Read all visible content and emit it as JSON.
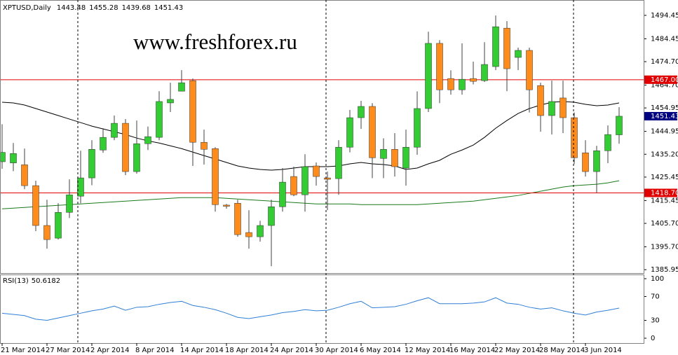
{
  "chart_data": [
    {
      "type": "candlestick",
      "title": "XPTUSD,Daily",
      "watermark": "www.freshforex.ru",
      "watermark_color": "#3aaa3a",
      "categories": [
        "21 Mar 2014",
        null,
        null,
        null,
        "27 Mar 2014",
        null,
        null,
        null,
        "2 Apr 2014",
        null,
        null,
        null,
        "8 Apr 2014",
        null,
        null,
        null,
        "14 Apr 2014",
        null,
        null,
        null,
        "18 Apr 2014",
        null,
        null,
        null,
        "24 Apr 2014",
        null,
        null,
        null,
        "30 Apr 2014",
        null,
        null,
        null,
        "6 May 2014",
        null,
        null,
        null,
        "12 May 2014",
        null,
        null,
        null,
        "16 May 2014",
        null,
        null,
        null,
        "22 May 2014",
        null,
        null,
        null,
        "28 May 2014",
        null,
        null,
        null,
        "3 Jun 2014",
        null,
        null,
        null
      ],
      "open": [
        1432.0,
        1431.5,
        1430.7,
        1421.8,
        1404.8,
        1399.4,
        1410.4,
        1417.3,
        1425.1,
        1437.0,
        1442.4,
        1448.4,
        1427.8,
        1439.7,
        1442.4,
        1457.1,
        1462.1,
        1466.6,
        1440.3,
        1437.6,
        1413.5,
        1414.3,
        1401.8,
        1400.0,
        1404.8,
        1412.8,
        1425.7,
        1417.9,
        1430.2,
        1425.1,
        1424.8,
        1438.2,
        1450.8,
        1455.6,
        1433.4,
        1437.3,
        1429.3,
        1438.2,
        1454.7,
        1482.5,
        1467.5,
        1462.7,
        1467.5,
        1466.6,
        1472.6,
        1489.0,
        1476.5,
        1479.5,
        1464.5,
        1451.7,
        1459.2,
        1450.8,
        1435.8,
        1427.8,
        1436.7,
        1443.48
      ],
      "high": [
        1448.0,
        1440.0,
        1437.6,
        1423.9,
        1415.8,
        1414.3,
        1424.5,
        1436.7,
        1441.2,
        1446.3,
        1451.7,
        1450.2,
        1449.6,
        1447.0,
        1462.1,
        1465.7,
        1471.1,
        1467.5,
        1445.7,
        1438.2,
        1414.0,
        1415.8,
        1411.3,
        1406.8,
        1415.8,
        1429.3,
        1429.9,
        1435.2,
        1431.7,
        1427.8,
        1441.2,
        1454.1,
        1458.0,
        1457.0,
        1442.0,
        1444.2,
        1445.7,
        1462.0,
        1487.5,
        1483.9,
        1471.0,
        1482.5,
        1474.7,
        1483.0,
        1494.4,
        1492.0,
        1480.7,
        1480.7,
        1465.7,
        1466.6,
        1466.6,
        1453.0,
        1441.2,
        1438.8,
        1447.5,
        1455.28
      ],
      "low": [
        1429.0,
        1428.0,
        1420.3,
        1402.4,
        1394.9,
        1398.8,
        1408.0,
        1414.3,
        1422.0,
        1435.8,
        1441.2,
        1426.3,
        1426.9,
        1437.0,
        1441.2,
        1453.2,
        1462.0,
        1430.2,
        1430.8,
        1410.7,
        1412.0,
        1400.0,
        1394.9,
        1397.9,
        1387.4,
        1410.7,
        1417.3,
        1410.7,
        1421.8,
        1411.3,
        1417.9,
        1436.0,
        1446.0,
        1425.0,
        1425.0,
        1425.7,
        1421.8,
        1435.0,
        1453.2,
        1457.0,
        1460.6,
        1460.6,
        1465.0,
        1466.0,
        1471.1,
        1462.1,
        1471.1,
        1453.0,
        1444.8,
        1443.6,
        1444.2,
        1431.0,
        1425.7,
        1418.8,
        1431.4,
        1439.68
      ],
      "close": [
        1436.0,
        1435.5,
        1421.8,
        1404.8,
        1398.8,
        1410.4,
        1417.9,
        1425.1,
        1437.3,
        1442.4,
        1448.4,
        1427.8,
        1439.7,
        1442.7,
        1457.7,
        1458.6,
        1465.7,
        1440.3,
        1437.3,
        1413.7,
        1413.0,
        1400.9,
        1400.0,
        1404.8,
        1412.8,
        1423.3,
        1417.9,
        1429.9,
        1425.7,
        1424.5,
        1438.2,
        1450.8,
        1455.6,
        1433.7,
        1437.3,
        1429.9,
        1438.2,
        1454.7,
        1482.5,
        1462.7,
        1462.7,
        1467.2,
        1466.3,
        1473.5,
        1489.6,
        1471.7,
        1479.5,
        1462.7,
        1451.7,
        1457.7,
        1450.8,
        1433.7,
        1427.8,
        1436.7,
        1443.6,
        1451.43
      ],
      "up_color": "#32cd32",
      "down_color": "#ff8c1a",
      "series": [
        {
          "color": "#000000",
          "values": [
            1457.4,
            1457.1,
            1456.2,
            1454.7,
            1453.2,
            1451.7,
            1450.2,
            1448.7,
            1447.2,
            1446.0,
            1444.8,
            1443.6,
            1442.1,
            1440.9,
            1440.0,
            1438.8,
            1437.6,
            1436.1,
            1434.6,
            1433.2,
            1431.7,
            1430.2,
            1429.3,
            1428.7,
            1428.4,
            1428.7,
            1429.3,
            1429.9,
            1429.9,
            1429.9,
            1430.2,
            1431.1,
            1431.7,
            1431.1,
            1430.8,
            1430.2,
            1428.7,
            1429.3,
            1431.1,
            1432.6,
            1435.2,
            1437.0,
            1439.1,
            1442.4,
            1446.3,
            1449.6,
            1452.6,
            1454.7,
            1456.2,
            1457.4,
            1457.7,
            1457.4,
            1456.5,
            1455.9,
            1456.2,
            1457.1
          ]
        },
        {
          "color": "#1a7a1a",
          "values": [
            1411.9,
            1412.2,
            1412.5,
            1412.8,
            1413.1,
            1413.4,
            1413.7,
            1414.0,
            1414.3,
            1414.6,
            1414.9,
            1415.2,
            1415.5,
            1415.8,
            1416.1,
            1416.4,
            1416.7,
            1416.7,
            1416.7,
            1416.7,
            1416.4,
            1416.1,
            1415.8,
            1415.5,
            1415.2,
            1414.9,
            1414.6,
            1414.3,
            1414.0,
            1414.0,
            1414.0,
            1414.0,
            1413.7,
            1413.7,
            1413.7,
            1413.7,
            1413.7,
            1413.7,
            1414.0,
            1414.3,
            1414.6,
            1414.9,
            1415.2,
            1415.8,
            1416.4,
            1417.0,
            1417.6,
            1418.5,
            1419.4,
            1420.3,
            1421.2,
            1421.8,
            1422.1,
            1422.4,
            1423.0,
            1423.9
          ]
        }
      ],
      "hlines": [
        {
          "value": 1467,
          "label": "1467.00",
          "color": "#e00000"
        },
        {
          "value": 1418.7,
          "label": "1418.70",
          "color": "#e00000"
        }
      ],
      "last_price_color": "#000080",
      "ylim": [
        1384.5,
        1501.0
      ],
      "yticks": [
        1494.45,
        1484.45,
        {
          "value": 1474.7,
          "label": "1474.70"
        },
        {
          "value": 1464.7,
          "label": "1464.70"
        },
        1454.95,
        1444.95,
        {
          "value": 1435.2,
          "label": "1435.20"
        },
        1425.45,
        1415.45,
        {
          "value": 1405.7,
          "label": "1405.70"
        },
        {
          "value": 1395.7,
          "label": "1395.70"
        },
        1385.95
      ]
    },
    {
      "type": "line",
      "title": "RSI(13)",
      "color": "#2f7fd6",
      "values": [
        42,
        40,
        38,
        32,
        30,
        34,
        38,
        42,
        46,
        49,
        54,
        47,
        52,
        53,
        57,
        60,
        62,
        55,
        52,
        48,
        42,
        35,
        33,
        36,
        39,
        43,
        45,
        48,
        46,
        47,
        52,
        58,
        62,
        51,
        52,
        53,
        57,
        63,
        68,
        58,
        58,
        58,
        59,
        61,
        68,
        59,
        57,
        52,
        49,
        51,
        46,
        42,
        39,
        44,
        47,
        50.6182
      ],
      "ylim": [
        -8.2,
        105.9
      ],
      "yticks": [
        100,
        70,
        30,
        0
      ]
    }
  ]
}
